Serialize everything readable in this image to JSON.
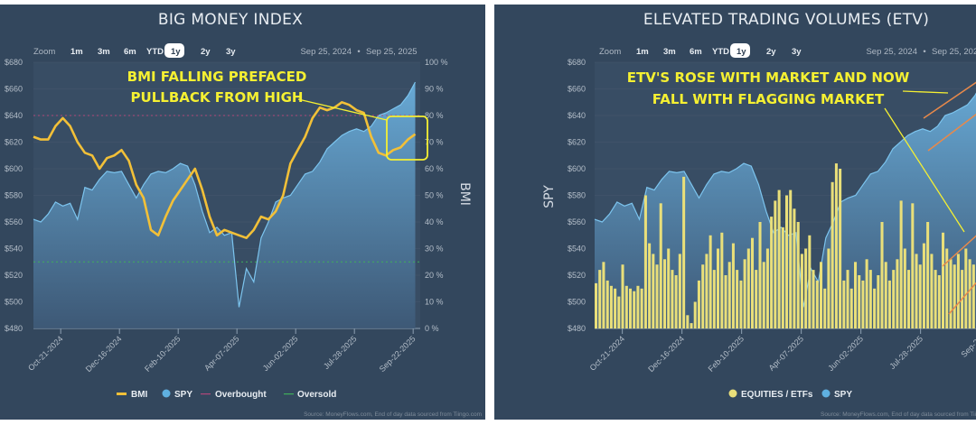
{
  "colors": {
    "panel_bg": "#33475d",
    "plot_bg": "#384d64",
    "spy_line": "#7cc4ee",
    "spy_fill_top": "#6aaedb",
    "spy_fill_bottom": "#3e5a78",
    "bmi_line": "#f2c038",
    "overbought": "#b0477a",
    "oversold": "#3fae5a",
    "etv_bar": "#e9df7a",
    "annotation": "#f5f032",
    "trendline": "#e8894a"
  },
  "toolbar": {
    "zoom_label": "Zoom",
    "buttons": [
      "1m",
      "3m",
      "6m",
      "YTD",
      "1y",
      "2y",
      "3y"
    ],
    "active": "1y",
    "range_from": "Sep 25, 2024",
    "range_sep": "•",
    "range_to": "Sep 25, 2025"
  },
  "source_text": "Source: MoneyFlows.com, End of day data sourced from Tiingo.com",
  "chart_data": [
    {
      "type": "line",
      "title": "BIG MONEY INDEX",
      "ylabel_right": "BMI",
      "ylim_left": [
        480,
        680
      ],
      "ylim_right": [
        0,
        100
      ],
      "y_ticks_left": [
        "$680",
        "$660",
        "$640",
        "$620",
        "$600",
        "$580",
        "$560",
        "$540",
        "$520",
        "$500",
        "$480"
      ],
      "y_ticks_right": [
        "100 %",
        "90 %",
        "80 %",
        "70 %",
        "60 %",
        "50 %",
        "40 %",
        "30 %",
        "20 %",
        "10 %",
        "0 %"
      ],
      "x_ticks": [
        "Oct-21-2024",
        "Dec-16-2024",
        "Feb-10-2025",
        "Apr-07-2025",
        "Jun-02-2025",
        "Jul-28-2025",
        "Sep-22-2025"
      ],
      "grid": true,
      "legend_position": "bottom",
      "legend": [
        "BMI",
        "SPY",
        "Overbought",
        "Oversold"
      ],
      "overbought": 80,
      "oversold": 25,
      "x": [
        "2024-09-25",
        "2024-10-02",
        "2024-10-09",
        "2024-10-16",
        "2024-10-23",
        "2024-10-30",
        "2024-11-06",
        "2024-11-13",
        "2024-11-20",
        "2024-11-27",
        "2024-12-04",
        "2024-12-11",
        "2024-12-18",
        "2024-12-25",
        "2025-01-01",
        "2025-01-08",
        "2025-01-15",
        "2025-01-22",
        "2025-01-29",
        "2025-02-05",
        "2025-02-12",
        "2025-02-19",
        "2025-02-26",
        "2025-03-05",
        "2025-03-12",
        "2025-03-19",
        "2025-03-26",
        "2025-04-02",
        "2025-04-09",
        "2025-04-16",
        "2025-04-23",
        "2025-04-30",
        "2025-05-07",
        "2025-05-14",
        "2025-05-21",
        "2025-05-28",
        "2025-06-04",
        "2025-06-11",
        "2025-06-18",
        "2025-06-25",
        "2025-07-02",
        "2025-07-09",
        "2025-07-16",
        "2025-07-23",
        "2025-07-30",
        "2025-08-06",
        "2025-08-13",
        "2025-08-20",
        "2025-08-27",
        "2025-09-03",
        "2025-09-10",
        "2025-09-17",
        "2025-09-24"
      ],
      "series": [
        {
          "name": "SPY",
          "axis": "left",
          "style": "area",
          "values": [
            562,
            560,
            566,
            575,
            572,
            574,
            562,
            586,
            584,
            592,
            598,
            597,
            598,
            588,
            578,
            588,
            596,
            598,
            597,
            600,
            604,
            602,
            588,
            568,
            552,
            556,
            550,
            552,
            496,
            525,
            515,
            548,
            560,
            575,
            578,
            580,
            588,
            596,
            598,
            605,
            615,
            620,
            625,
            628,
            630,
            628,
            632,
            640,
            642,
            645,
            648,
            655,
            665
          ]
        },
        {
          "name": "BMI",
          "axis": "right",
          "style": "line",
          "values": [
            72,
            71,
            71,
            76,
            79,
            76,
            70,
            66,
            65,
            60,
            64,
            65,
            67,
            63,
            54,
            49,
            37,
            35,
            42,
            48,
            52,
            56,
            60,
            52,
            42,
            35,
            37,
            36,
            35,
            34,
            37,
            42,
            41,
            44,
            50,
            62,
            67,
            72,
            79,
            83,
            82,
            83,
            85,
            84,
            82,
            81,
            72,
            66,
            65,
            67,
            68,
            71,
            73
          ]
        }
      ],
      "annotation": {
        "line1": "BMI FALLING PREFACED",
        "line2": "PULLBACK FROM HIGH"
      }
    },
    {
      "type": "bar",
      "title": "ELEVATED TRADING VOLUMES (ETV)",
      "ylabel_left": "SPY",
      "ylim_left": [
        480,
        680
      ],
      "y_ticks_left": [
        "$680",
        "$660",
        "$640",
        "$620",
        "$600",
        "$580",
        "$560",
        "$540",
        "$520",
        "$500",
        "$480"
      ],
      "x_ticks": [
        "Oct-21-2024",
        "Dec-16-2024",
        "Feb-10-2025",
        "Apr-07-2025",
        "Jun-02-2025",
        "Jul-28-2025",
        "Sep-22"
      ],
      "grid": true,
      "legend_position": "bottom",
      "legend": [
        "EQUITIES / ETFs",
        "SPY"
      ],
      "series": [
        {
          "name": "EQUITIES / ETFs",
          "style": "bar",
          "values": [
            17,
            22,
            25,
            18,
            16,
            15,
            12,
            24,
            16,
            15,
            14,
            16,
            15,
            50,
            32,
            28,
            24,
            47,
            26,
            30,
            22,
            20,
            28,
            57,
            5,
            2,
            10,
            18,
            24,
            28,
            35,
            22,
            30,
            36,
            20,
            25,
            32,
            22,
            18,
            26,
            30,
            34,
            22,
            40,
            25,
            30,
            42,
            48,
            52,
            38,
            50,
            52,
            45,
            40,
            28,
            30,
            35,
            22,
            18,
            25,
            15,
            30,
            55,
            62,
            60,
            18,
            22,
            15,
            25,
            20,
            18,
            26,
            22,
            15,
            20,
            40,
            25,
            18,
            22,
            26,
            48,
            30,
            22,
            47,
            28,
            24,
            32,
            40,
            28,
            22,
            20,
            36,
            30,
            26,
            24,
            28,
            22,
            30,
            26,
            24
          ]
        },
        {
          "name": "SPY",
          "style": "area",
          "values": [
            562,
            560,
            566,
            575,
            572,
            574,
            562,
            586,
            584,
            592,
            598,
            597,
            598,
            588,
            578,
            588,
            596,
            598,
            597,
            600,
            604,
            602,
            588,
            568,
            552,
            556,
            550,
            552,
            496,
            525,
            515,
            548,
            560,
            575,
            578,
            580,
            588,
            596,
            598,
            605,
            615,
            620,
            625,
            628,
            630,
            628,
            632,
            640,
            642,
            645,
            648,
            655,
            665
          ]
        }
      ],
      "annotation": {
        "line1": "ETV'S ROSE WITH MARKET AND NOW",
        "line2": "FALL WITH FLAGGING MARKET"
      }
    }
  ]
}
